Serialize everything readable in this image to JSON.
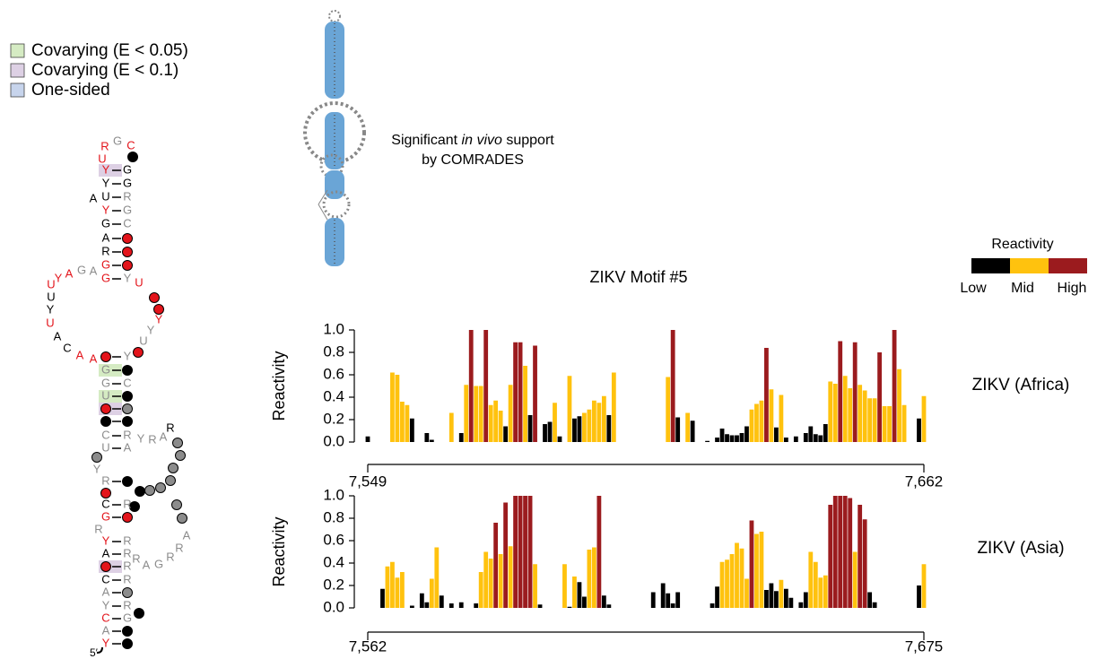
{
  "legend": [
    {
      "label": "Covarying (E < 0.05)",
      "color": "#d5ebc3"
    },
    {
      "label": "Covarying (E < 0.1)",
      "color": "#ddd0e4"
    },
    {
      "label": "One-sided",
      "color": "#c7d4ec"
    }
  ],
  "annotation": {
    "parts": [
      "Significant ",
      "in vivo",
      " support"
    ],
    "line2": "by COMRADES"
  },
  "reactivity_legend": {
    "title": "Reactivity",
    "labels": [
      "Low",
      "Mid",
      "High"
    ],
    "colors": [
      "#000000",
      "#ffc20e",
      "#9b1b1e"
    ],
    "breaks": [
      0.25,
      0.7
    ]
  },
  "structure": {
    "five_prime": "5′",
    "nucleotides": [
      {
        "base": "U",
        "color": "red"
      },
      {
        "base": "R",
        "color": "red"
      },
      {
        "base": "G",
        "color": "gray"
      },
      {
        "base": "C",
        "color": "red"
      },
      {
        "base": "Y",
        "color": "red"
      },
      {
        "base": "G",
        "color": "black"
      },
      {
        "base": "Y",
        "color": "black"
      },
      {
        "base": "G",
        "color": "black"
      },
      {
        "base": "A",
        "color": "black"
      },
      {
        "base": "U",
        "color": "black"
      },
      {
        "base": "R",
        "color": "gray"
      },
      {
        "base": "Y",
        "color": "red"
      },
      {
        "base": "G",
        "color": "gray"
      },
      {
        "base": "G",
        "color": "black"
      },
      {
        "base": "C",
        "color": "gray"
      },
      {
        "base": "A",
        "color": "black"
      },
      {
        "base": "R",
        "color": "black"
      },
      {
        "base": "G",
        "color": "red"
      },
      {
        "base": "G",
        "color": "red"
      },
      {
        "base": "Y",
        "color": "gray"
      },
      {
        "base": "A",
        "color": "gray"
      },
      {
        "base": "G",
        "color": "gray"
      },
      {
        "base": "A",
        "color": "red"
      },
      {
        "base": "Y",
        "color": "red"
      },
      {
        "base": "U",
        "color": "red"
      },
      {
        "base": "U",
        "color": "black"
      },
      {
        "base": "Y",
        "color": "black"
      },
      {
        "base": "U",
        "color": "red"
      },
      {
        "base": "A",
        "color": "black"
      },
      {
        "base": "C",
        "color": "black"
      },
      {
        "base": "A",
        "color": "red"
      },
      {
        "base": "A",
        "color": "red"
      },
      {
        "base": "U",
        "color": "red"
      },
      {
        "base": "Y",
        "color": "red"
      },
      {
        "base": "Y",
        "color": "gray"
      },
      {
        "base": "U",
        "color": "gray"
      },
      {
        "base": "Y",
        "color": "gray"
      },
      {
        "base": "G",
        "color": "gray"
      },
      {
        "base": "G",
        "color": "gray"
      },
      {
        "base": "C",
        "color": "gray"
      },
      {
        "base": "U",
        "color": "gray"
      },
      {
        "base": "C",
        "color": "gray"
      },
      {
        "base": "R",
        "color": "gray"
      },
      {
        "base": "Y",
        "color": "gray"
      },
      {
        "base": "R",
        "color": "gray"
      },
      {
        "base": "A",
        "color": "gray"
      },
      {
        "base": "R",
        "color": "black"
      },
      {
        "base": "U",
        "color": "gray"
      },
      {
        "base": "A",
        "color": "gray"
      },
      {
        "base": "Y",
        "color": "gray"
      },
      {
        "base": "R",
        "color": "gray"
      },
      {
        "base": "C",
        "color": "black"
      },
      {
        "base": "R",
        "color": "gray"
      },
      {
        "base": "G",
        "color": "red"
      },
      {
        "base": "R",
        "color": "gray"
      },
      {
        "base": "Y",
        "color": "red"
      },
      {
        "base": "R",
        "color": "gray"
      },
      {
        "base": "A",
        "color": "black"
      },
      {
        "base": "R",
        "color": "gray"
      },
      {
        "base": "R",
        "color": "gray"
      },
      {
        "base": "A",
        "color": "gray"
      },
      {
        "base": "G",
        "color": "gray"
      },
      {
        "base": "R",
        "color": "gray"
      },
      {
        "base": "R",
        "color": "gray"
      },
      {
        "base": "A",
        "color": "gray"
      },
      {
        "base": "R",
        "color": "gray"
      },
      {
        "base": "C",
        "color": "black"
      },
      {
        "base": "R",
        "color": "gray"
      },
      {
        "base": "A",
        "color": "gray"
      },
      {
        "base": "Y",
        "color": "gray"
      },
      {
        "base": "R",
        "color": "gray"
      },
      {
        "base": "C",
        "color": "red"
      },
      {
        "base": "G",
        "color": "gray"
      },
      {
        "base": "A",
        "color": "gray"
      },
      {
        "base": "Y",
        "color": "red"
      }
    ]
  },
  "chart_data": [
    {
      "type": "bar",
      "title": "ZIKV Motif #5",
      "ylabel": "Reactivity",
      "x": [
        7549,
        7550,
        7551,
        7552,
        7553,
        7554,
        7555,
        7556,
        7557,
        7558,
        7559,
        7560,
        7561,
        7562,
        7563,
        7564,
        7565,
        7566,
        7567,
        7568,
        7569,
        7570,
        7571,
        7572,
        7573,
        7574,
        7575,
        7576,
        7577,
        7578,
        7579,
        7580,
        7581,
        7582,
        7583,
        7584,
        7585,
        7586,
        7587,
        7588,
        7589,
        7590,
        7591,
        7592,
        7593,
        7594,
        7595,
        7596,
        7597,
        7598,
        7599,
        7600,
        7601,
        7602,
        7603,
        7604,
        7605,
        7606,
        7607,
        7608,
        7609,
        7610,
        7611,
        7612,
        7613,
        7614,
        7615,
        7616,
        7617,
        7618,
        7619,
        7620,
        7621,
        7622,
        7623,
        7624,
        7625,
        7626,
        7627,
        7628,
        7629,
        7630,
        7631,
        7632,
        7633,
        7634,
        7635,
        7636,
        7637,
        7638,
        7639,
        7640,
        7641,
        7642,
        7643,
        7644,
        7645,
        7646,
        7647,
        7648,
        7649,
        7650,
        7651,
        7652,
        7653,
        7654,
        7655,
        7656,
        7657,
        7658,
        7659,
        7660,
        7661,
        7662
      ],
      "series": [
        {
          "name": "ZIKV (Africa)",
          "values": [
            0.05,
            null,
            null,
            null,
            null,
            0.62,
            0.6,
            0.36,
            0.33,
            0.21,
            null,
            null,
            0.08,
            0.02,
            null,
            null,
            null,
            0.26,
            null,
            0.08,
            0.51,
            1.0,
            0.5,
            0.5,
            1.0,
            0.33,
            0.37,
            0.28,
            0.14,
            0.51,
            0.89,
            0.89,
            0.68,
            0.24,
            0.86,
            null,
            0.16,
            0.18,
            0.35,
            0.05,
            null,
            0.59,
            0.21,
            0.23,
            0.26,
            0.29,
            0.37,
            0.35,
            0.41,
            0.24,
            0.62,
            null,
            null,
            null,
            null,
            null,
            null,
            null,
            null,
            null,
            null,
            0.58,
            1.0,
            0.22,
            null,
            0.26,
            0.19,
            null,
            null,
            0.01,
            null,
            0.04,
            0.12,
            0.07,
            0.06,
            0.06,
            0.08,
            0.14,
            0.29,
            0.34,
            0.37,
            0.84,
            0.47,
            0.13,
            0.42,
            0.04,
            null,
            0.05,
            null,
            0.08,
            0.14,
            0.07,
            0.06,
            0.16,
            0.54,
            0.52,
            0.9,
            0.59,
            0.48,
            0.89,
            0.51,
            0.46,
            0.39,
            0.39,
            0.8,
            0.32,
            0.32,
            1.0,
            0.65,
            0.33,
            null,
            null,
            0.21,
            0.41
          ]
        }
      ],
      "xlim": [
        7549,
        7662
      ],
      "xticks": [
        {
          "value": 7549,
          "label": "7,549"
        },
        {
          "value": 7662,
          "label": "7,662"
        }
      ],
      "ylim": [
        0,
        1
      ],
      "yticks": [
        {
          "value": 0,
          "label": "0.0"
        },
        {
          "value": 0.2,
          "label": "0.2"
        },
        {
          "value": 0.4,
          "label": "0.4"
        },
        {
          "value": 0.6,
          "label": "0.6"
        },
        {
          "value": 0.8,
          "label": "0.8"
        },
        {
          "value": 1,
          "label": "1.0"
        }
      ]
    },
    {
      "type": "bar",
      "ylabel": "Reactivity",
      "x": [
        7562,
        7563,
        7564,
        7565,
        7566,
        7567,
        7568,
        7569,
        7570,
        7571,
        7572,
        7573,
        7574,
        7575,
        7576,
        7577,
        7578,
        7579,
        7580,
        7581,
        7582,
        7583,
        7584,
        7585,
        7586,
        7587,
        7588,
        7589,
        7590,
        7591,
        7592,
        7593,
        7594,
        7595,
        7596,
        7597,
        7598,
        7599,
        7600,
        7601,
        7602,
        7603,
        7604,
        7605,
        7606,
        7607,
        7608,
        7609,
        7610,
        7611,
        7612,
        7613,
        7614,
        7615,
        7616,
        7617,
        7618,
        7619,
        7620,
        7621,
        7622,
        7623,
        7624,
        7625,
        7626,
        7627,
        7628,
        7629,
        7630,
        7631,
        7632,
        7633,
        7634,
        7635,
        7636,
        7637,
        7638,
        7639,
        7640,
        7641,
        7642,
        7643,
        7644,
        7645,
        7646,
        7647,
        7648,
        7649,
        7650,
        7651,
        7652,
        7653,
        7654,
        7655,
        7656,
        7657,
        7658,
        7659,
        7660,
        7661,
        7662,
        7663,
        7664,
        7665,
        7666,
        7667,
        7668,
        7669,
        7670,
        7671,
        7672,
        7673,
        7674,
        7675
      ],
      "series": [
        {
          "name": "ZIKV (Asia)",
          "values": [
            null,
            null,
            null,
            0.17,
            0.37,
            0.41,
            0.27,
            0.32,
            null,
            0.02,
            null,
            0.13,
            0.05,
            0.26,
            0.54,
            0.11,
            null,
            0.04,
            null,
            0.05,
            null,
            null,
            0.04,
            0.32,
            0.5,
            0.44,
            0.76,
            0.48,
            0.94,
            0.55,
            1.0,
            1.0,
            1.0,
            1.0,
            0.39,
            0.03,
            null,
            null,
            null,
            null,
            0.39,
            0.01,
            0.28,
            0.23,
            0.1,
            0.52,
            0.54,
            1.0,
            0.11,
            0.03,
            null,
            null,
            null,
            null,
            null,
            null,
            null,
            null,
            0.14,
            null,
            0.22,
            0.13,
            0.04,
            0.14,
            null,
            null,
            null,
            null,
            null,
            null,
            0.04,
            0.19,
            0.41,
            0.43,
            0.48,
            0.58,
            0.53,
            0.26,
            0.78,
            0.66,
            0.68,
            0.16,
            0.22,
            0.15,
            0.25,
            0.17,
            0.09,
            null,
            0.05,
            0.14,
            0.5,
            0.41,
            0.27,
            0.29,
            0.92,
            1.0,
            1.0,
            1.0,
            0.98,
            0.5,
            0.92,
            0.79,
            0.14,
            0.05,
            null,
            null,
            null,
            null,
            null,
            null,
            null,
            null,
            0.2,
            0.39
          ]
        }
      ],
      "xlim": [
        7562,
        7675
      ],
      "xticks": [
        {
          "value": 7562,
          "label": "7,562"
        },
        {
          "value": 7675,
          "label": "7,675"
        }
      ],
      "ylim": [
        0,
        1
      ],
      "yticks": [
        {
          "value": 0,
          "label": "0.0"
        },
        {
          "value": 0.2,
          "label": "0.2"
        },
        {
          "value": 0.4,
          "label": "0.4"
        },
        {
          "value": 0.6,
          "label": "0.6"
        },
        {
          "value": 0.8,
          "label": "0.8"
        },
        {
          "value": 1,
          "label": "1.0"
        }
      ]
    }
  ]
}
